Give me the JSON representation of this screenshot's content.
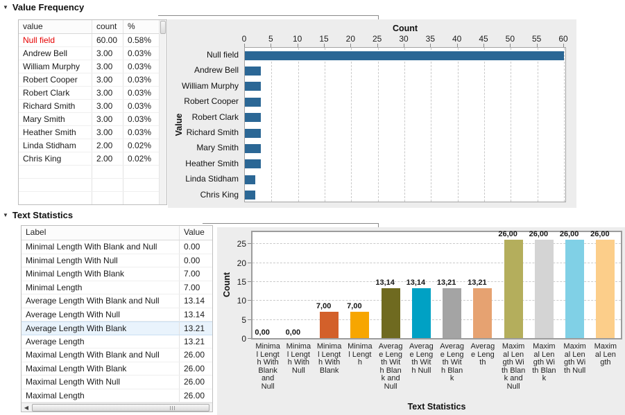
{
  "colors": {
    "null_field_red": "#e60000",
    "frequency_bar_blue": "#2b6795",
    "panel_gray": "#ededed",
    "selection_blue": "#e9f3fc"
  },
  "value_frequency": {
    "title": "Value Frequency",
    "table": {
      "columns": [
        "value",
        "count",
        "%"
      ],
      "rows": [
        {
          "value": "Null field",
          "count": "60.00",
          "pct": "0.58%",
          "highlight_red": true
        },
        {
          "value": "Andrew Bell",
          "count": "3.00",
          "pct": "0.03%"
        },
        {
          "value": "William Murphy",
          "count": "3.00",
          "pct": "0.03%"
        },
        {
          "value": "Robert Cooper",
          "count": "3.00",
          "pct": "0.03%"
        },
        {
          "value": "Robert Clark",
          "count": "3.00",
          "pct": "0.03%"
        },
        {
          "value": "Richard Smith",
          "count": "3.00",
          "pct": "0.03%"
        },
        {
          "value": "Mary Smith",
          "count": "3.00",
          "pct": "0.03%"
        },
        {
          "value": "Heather Smith",
          "count": "3.00",
          "pct": "0.03%"
        },
        {
          "value": "Linda Stidham",
          "count": "2.00",
          "pct": "0.02%"
        },
        {
          "value": "Chris King",
          "count": "2.00",
          "pct": "0.02%"
        }
      ],
      "empty_rows": 3
    }
  },
  "text_statistics": {
    "title": "Text Statistics",
    "table": {
      "columns": [
        "Label",
        "Value"
      ],
      "rows": [
        [
          "Minimal Length With Blank and Null",
          "0.00"
        ],
        [
          "Minimal Length With Null",
          "0.00"
        ],
        [
          "Minimal Length With Blank",
          "7.00"
        ],
        [
          "Minimal Length",
          "7.00"
        ],
        [
          "Average Length With Blank and Null",
          "13.14"
        ],
        [
          "Average Length With Null",
          "13.14"
        ],
        [
          "Average Length With Blank",
          "13.21"
        ],
        [
          "Average Length",
          "13.21"
        ],
        [
          "Maximal Length With Blank and Null",
          "26.00"
        ],
        [
          "Maximal Length With Blank",
          "26.00"
        ],
        [
          "Maximal Length With Null",
          "26.00"
        ],
        [
          "Maximal Length",
          "26.00"
        ]
      ],
      "selected_row_index": 6
    }
  },
  "chart_data": [
    {
      "type": "bar",
      "orientation": "horizontal",
      "xlabel": "Count",
      "ylabel": "Value",
      "categories": [
        "Null field",
        "Andrew Bell",
        "William Murphy",
        "Robert Cooper",
        "Robert Clark",
        "Richard Smith",
        "Mary Smith",
        "Heather Smith",
        "Linda Stidham",
        "Chris King"
      ],
      "values": [
        60,
        3,
        3,
        3,
        3,
        3,
        3,
        3,
        2,
        2
      ],
      "xlim": [
        0,
        60
      ],
      "xticks": [
        0,
        5,
        10,
        15,
        20,
        25,
        30,
        35,
        40,
        45,
        50,
        55,
        60
      ],
      "bar_color": "#2b6795",
      "grid": "vertical-dashed",
      "legend": "none"
    },
    {
      "type": "bar",
      "orientation": "vertical",
      "xlabel": "Text Statistics",
      "ylabel": "Count",
      "categories": [
        "Minimal Length With Blank and Null",
        "Minimal Length With Null",
        "Minimal Length With Blank",
        "Minimal Length",
        "Average Length With Blank and Null",
        "Average Length With Null",
        "Average Length With Blank",
        "Average Length",
        "Maximal Length With Blank and Null",
        "Maximal Length With Blank",
        "Maximal Length With Null",
        "Maximal Length"
      ],
      "tick_label_lines": [
        [
          "Minima",
          "l Lengt",
          "h With",
          "Blank",
          "and",
          "Null"
        ],
        [
          "Minima",
          "l Lengt",
          "h With",
          "Null"
        ],
        [
          "Minima",
          "l Lengt",
          "h With",
          "Blank"
        ],
        [
          "Minima",
          "l Lengt",
          "h"
        ],
        [
          "Averag",
          "e Leng",
          "th Wit",
          "h Blan",
          "k and",
          "Null"
        ],
        [
          "Averag",
          "e Leng",
          "th Wit",
          "h Null"
        ],
        [
          "Averag",
          "e Leng",
          "th Wit",
          "h Blan",
          "k"
        ],
        [
          "Averag",
          "e Leng",
          "th"
        ],
        [
          "Maxim",
          "al Len",
          "gth Wi",
          "th Blan",
          "k and",
          "Null"
        ],
        [
          "Maxim",
          "al Len",
          "gth Wi",
          "th Blan",
          "k"
        ],
        [
          "Maxim",
          "al Len",
          "gth Wi",
          "th Null"
        ],
        [
          "Maxim",
          "al Len",
          "gth"
        ]
      ],
      "values": [
        0,
        0,
        7,
        7,
        13.14,
        13.14,
        13.21,
        13.21,
        26,
        26,
        26,
        26
      ],
      "value_labels": [
        "0,00",
        "0,00",
        "7,00",
        "7,00",
        "13,14",
        "13,14",
        "13,21",
        "13,21",
        "26,00",
        "26,00",
        "26,00",
        "26,00"
      ],
      "bar_colors": [
        null,
        null,
        "#d3602a",
        "#f7a600",
        "#6f6a20",
        "#00a1c4",
        "#a4a4a4",
        "#e6a271",
        "#b4ae5c",
        "#d4d4d4",
        "#80d0e6",
        "#fcce8a"
      ],
      "ylim": [
        0,
        28
      ],
      "yticks": [
        0,
        5,
        10,
        15,
        20,
        25
      ],
      "grid": "horizontal-dashed",
      "legend": "none"
    }
  ]
}
